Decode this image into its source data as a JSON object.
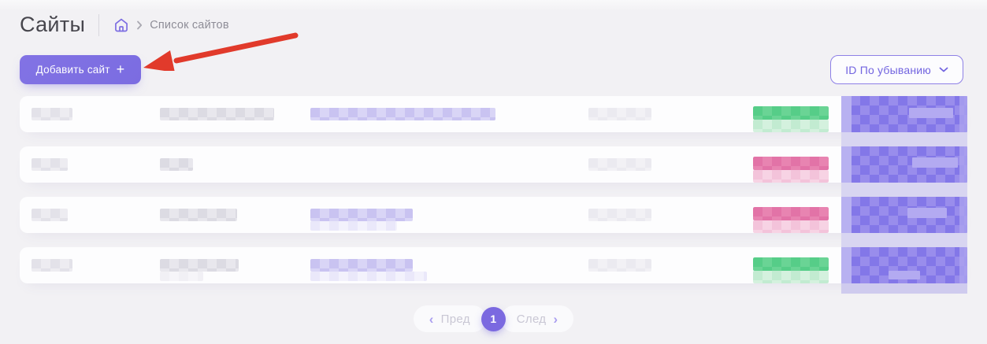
{
  "header": {
    "title": "Сайты",
    "breadcrumb_current": "Список сайтов"
  },
  "toolbar": {
    "add_site_label": "Добавить сайт",
    "add_site_plus": "+",
    "sort_value": "ID По убыванию"
  },
  "pagination": {
    "prev_label": "Пред",
    "current_page": "1",
    "next_label": "След"
  },
  "colors": {
    "accent_purple": "#7c6de2",
    "annotation_arrow_red": "#e13a2b",
    "redaction_purple": "#8377e8",
    "redaction_lavender": "#c9c3f1",
    "redaction_gray": "#dcdbe3",
    "badges": {
      "green": {
        "top": "#56cd88",
        "top2": "#6ad495",
        "bottom": "#c2ebd1",
        "bottom2": "#d4f1de"
      },
      "pink": {
        "top": "#e273a7",
        "top2": "#e884b1",
        "bottom": "#f3c3da",
        "bottom2": "#f7d3e4"
      }
    }
  },
  "rows": [
    {
      "badge": "green",
      "id_w": 52,
      "name_w": 145,
      "name2_w": 0,
      "url_w": 235,
      "url2_w": 0,
      "meta_w": 80
    },
    {
      "badge": "pink",
      "id_w": 46,
      "name_w": 42,
      "name2_w": 0,
      "url_w": 0,
      "url2_w": 0,
      "meta_w": 80
    },
    {
      "badge": "pink",
      "id_w": 46,
      "name_w": 98,
      "name2_w": 0,
      "url_w": 130,
      "url2_w": 110,
      "meta_w": 80
    },
    {
      "badge": "green",
      "id_w": 52,
      "name_w": 100,
      "name2_w": 55,
      "url_w": 130,
      "url2_w": 148,
      "meta_w": 80
    }
  ]
}
